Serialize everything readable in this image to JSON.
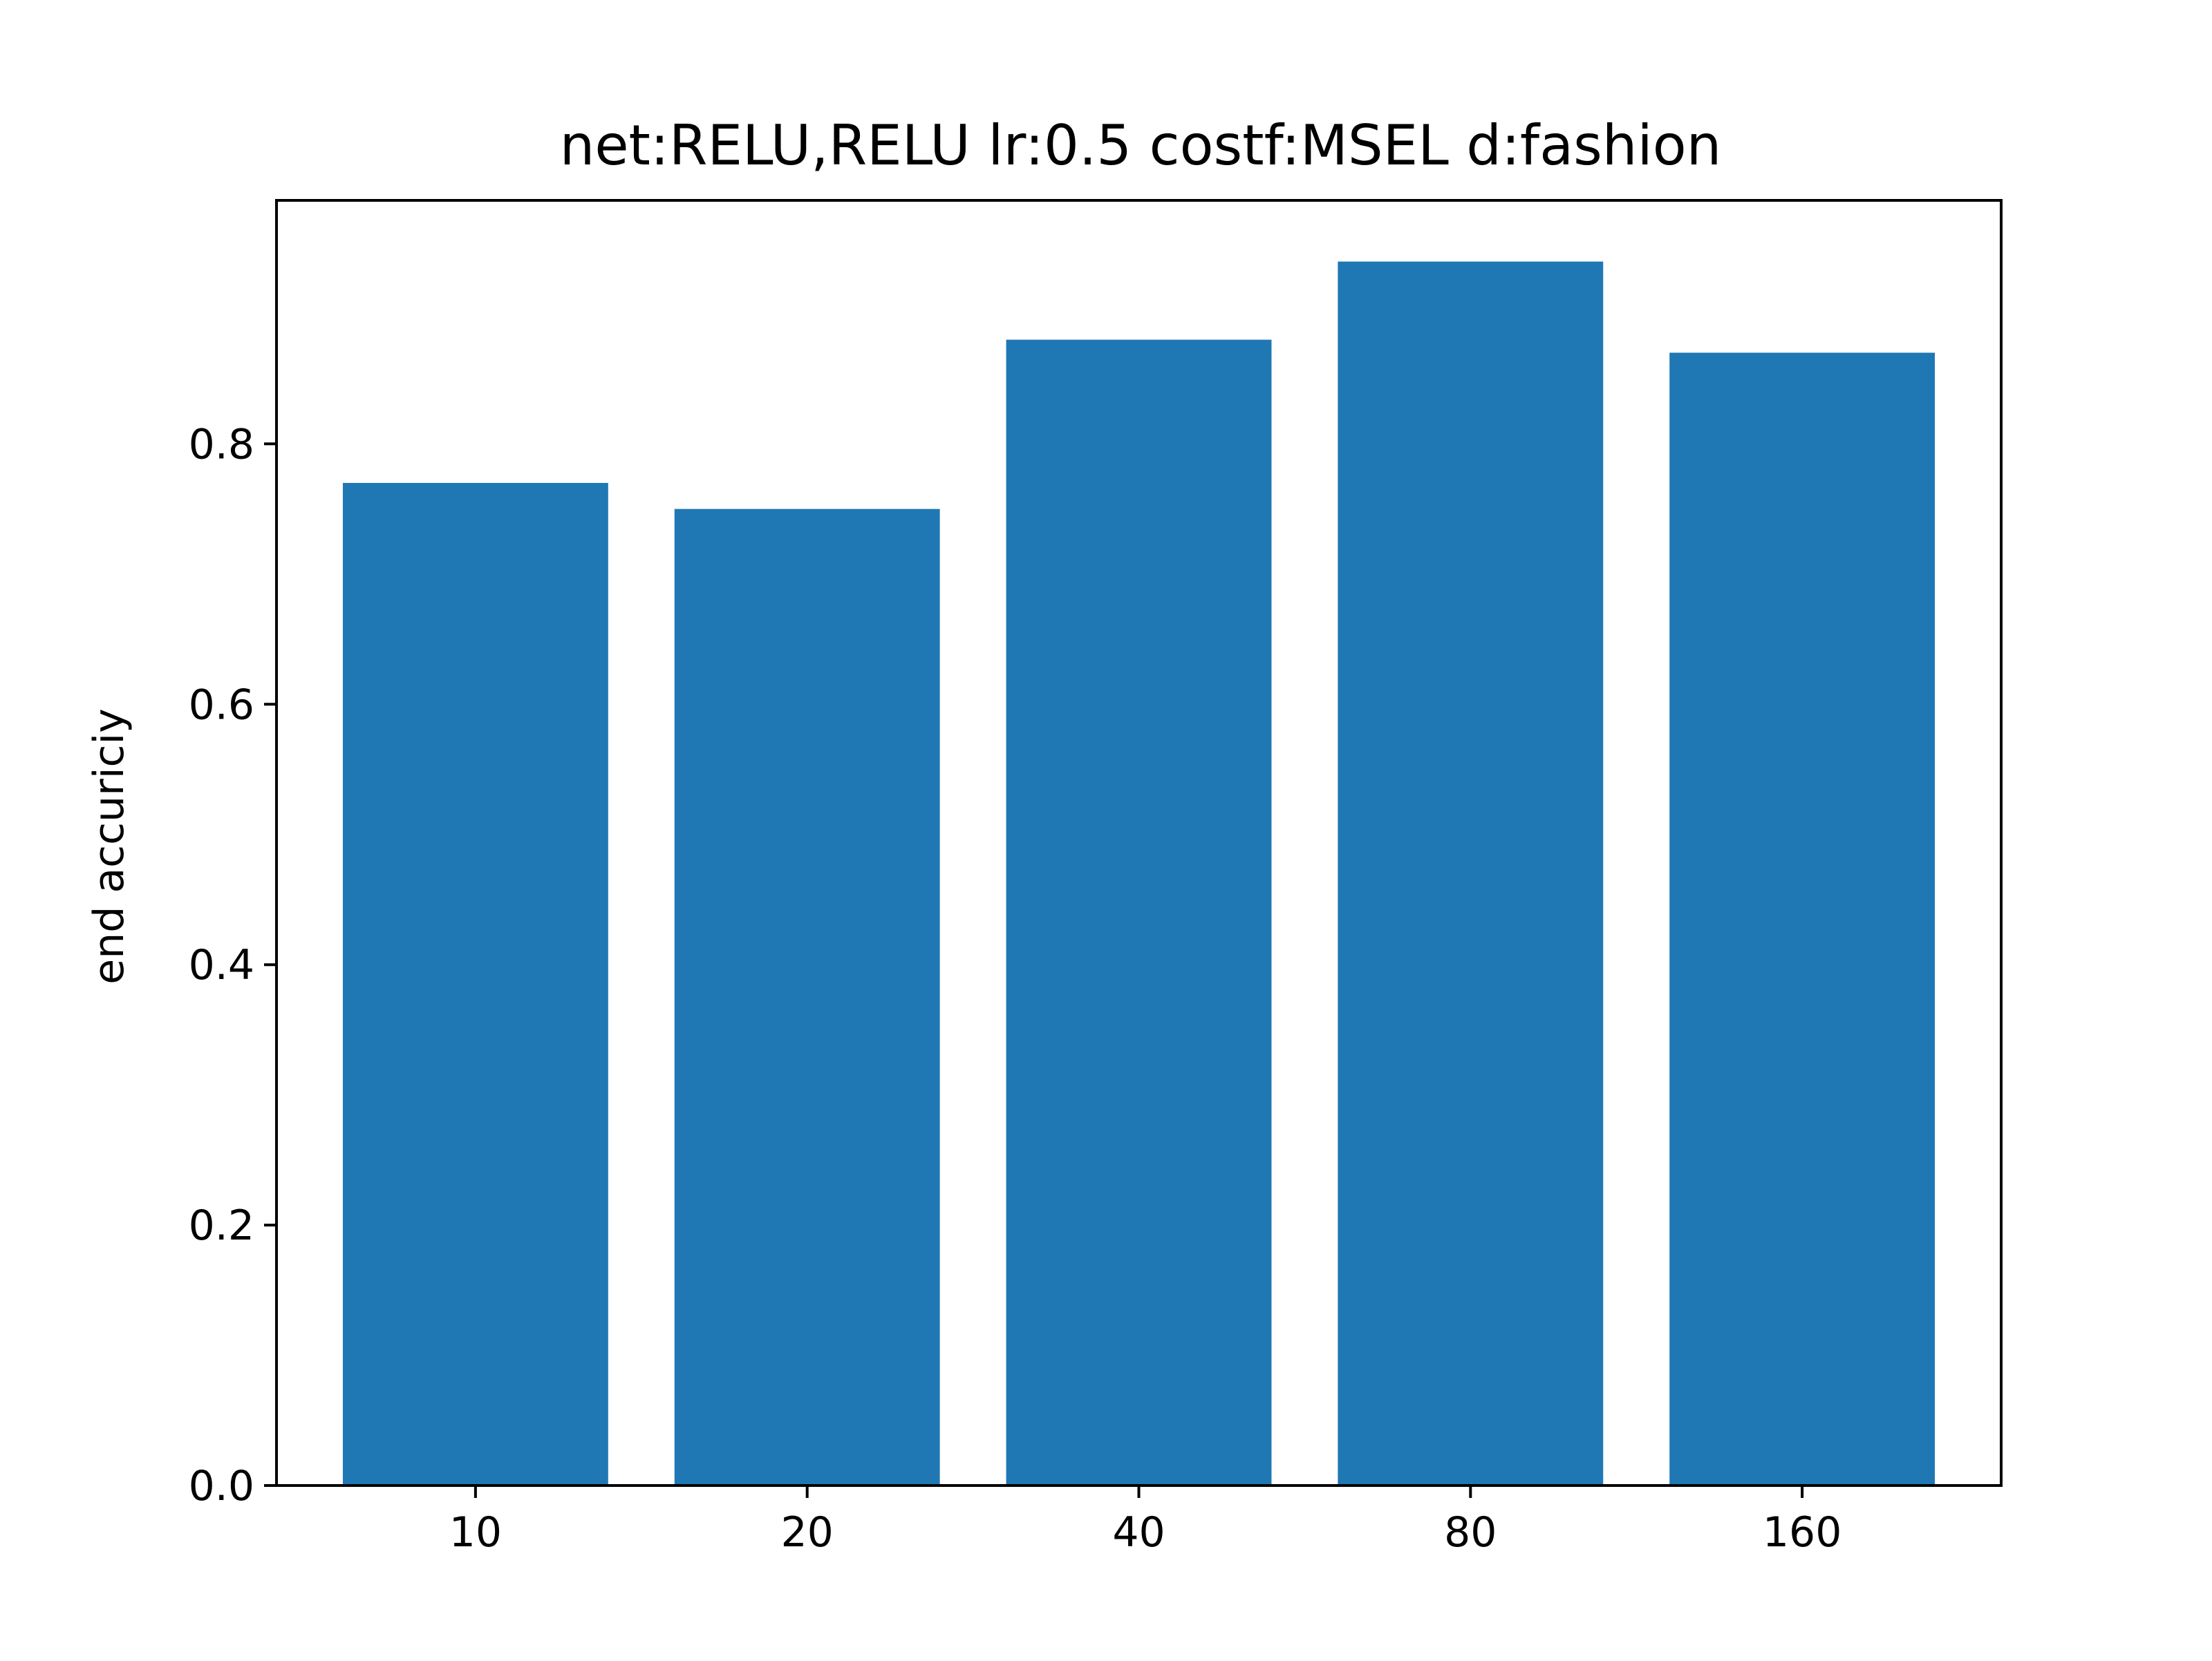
{
  "chart_data": {
    "type": "bar",
    "title": "net:RELU,RELU lr:0.5 costf:MSEL d:fashion",
    "xlabel": "",
    "ylabel": "end accuriciy",
    "categories": [
      "10",
      "20",
      "40",
      "80",
      "160"
    ],
    "values": [
      0.77,
      0.75,
      0.88,
      0.94,
      0.87
    ],
    "ylim": [
      0,
      0.987
    ],
    "yticks": [
      "0.0",
      "0.2",
      "0.4",
      "0.6",
      "0.8"
    ],
    "ytick_values": [
      0.0,
      0.2,
      0.4,
      0.6,
      0.8
    ],
    "bar_color": "#1f77b4",
    "grid": false,
    "legend": "none"
  }
}
